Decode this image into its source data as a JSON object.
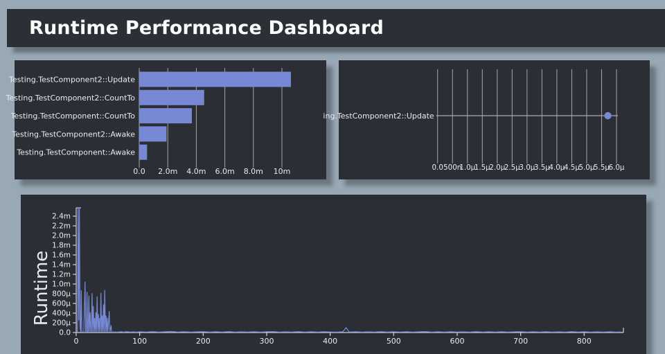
{
  "theme": {
    "page_background": "#98a8b4",
    "panel_background": "#2b2e34",
    "accent": "#7789d4",
    "grid_color": "#a7a7a7",
    "axis_color": "#cfd2d6",
    "text_color": "#e9ebee",
    "title_color": "#fbfbfb"
  },
  "header": {
    "title": "Runtime Performance Dashboard"
  },
  "chart_data": [
    {
      "id": "method-total-runtime",
      "type": "bar",
      "orientation": "horizontal",
      "categories": [
        "Testing.TestComponent2::Update",
        "Testing.TestComponent2::CountTo",
        "Testing.TestComponent::CountTo",
        "Testing.TestComponent2::Awake",
        "Testing.TestComponent::Awake"
      ],
      "values_ms": [
        10.63,
        4.55,
        3.69,
        1.91,
        0.55
      ],
      "xlim_ms": [
        0,
        12.5
      ],
      "grid": true,
      "xticks": [
        {
          "v": 0,
          "label": "0.0"
        },
        {
          "v": 2,
          "label": "2.0m"
        },
        {
          "v": 4,
          "label": "4.0m"
        },
        {
          "v": 6,
          "label": "6.0m"
        },
        {
          "v": 8,
          "label": "8.0m"
        },
        {
          "v": 10,
          "label": "10m"
        }
      ]
    },
    {
      "id": "update-runtime-range",
      "type": "scatter",
      "categories": [
        "ing.TestComponent2::Update"
      ],
      "mean_us": 5.71,
      "range_us": [
        0,
        6.05
      ],
      "xlim_us": [
        0,
        6.3
      ],
      "grid": true,
      "xticks": [
        {
          "v": 0.0,
          "label": "0.0"
        },
        {
          "v": 0.5,
          "label": "500n"
        },
        {
          "v": 1.0,
          "label": "1.0µ"
        },
        {
          "v": 1.5,
          "label": "1.5µ"
        },
        {
          "v": 2.0,
          "label": "2.0µ"
        },
        {
          "v": 2.5,
          "label": "2.5µ"
        },
        {
          "v": 3.0,
          "label": "3.0µ"
        },
        {
          "v": 3.5,
          "label": "3.5µ"
        },
        {
          "v": 4.0,
          "label": "4.0µ"
        },
        {
          "v": 4.5,
          "label": "4.5µ"
        },
        {
          "v": 5.0,
          "label": "5.0µ"
        },
        {
          "v": 5.5,
          "label": "5.5µ"
        },
        {
          "v": 6.0,
          "label": "6.0µ"
        }
      ]
    },
    {
      "id": "runtime-timeline",
      "type": "line",
      "ylabel": "Runtime",
      "xlim": [
        0,
        862
      ],
      "ylim_us": [
        0,
        2571
      ],
      "grid": false,
      "xticks": [
        {
          "v": 0,
          "label": "0"
        },
        {
          "v": 100,
          "label": "100"
        },
        {
          "v": 200,
          "label": "200"
        },
        {
          "v": 300,
          "label": "300"
        },
        {
          "v": 400,
          "label": "400"
        },
        {
          "v": 500,
          "label": "500"
        },
        {
          "v": 600,
          "label": "600"
        },
        {
          "v": 700,
          "label": "700"
        },
        {
          "v": 800,
          "label": "800"
        }
      ],
      "yticks": [
        {
          "v": 0,
          "label": "0.0"
        },
        {
          "v": 200,
          "label": "200µ"
        },
        {
          "v": 400,
          "label": "400µ"
        },
        {
          "v": 600,
          "label": "600µ"
        },
        {
          "v": 800,
          "label": "800µ"
        },
        {
          "v": 1000,
          "label": "1.0m"
        },
        {
          "v": 1200,
          "label": "1.2m"
        },
        {
          "v": 1400,
          "label": "1.4m"
        },
        {
          "v": 1600,
          "label": "1.6m"
        },
        {
          "v": 1800,
          "label": "1.8m"
        },
        {
          "v": 2000,
          "label": "2.0m"
        },
        {
          "v": 2200,
          "label": "2.2m"
        },
        {
          "v": 2400,
          "label": "2.4m"
        }
      ],
      "points_x_us": [
        [
          0,
          6
        ],
        [
          1,
          10
        ],
        [
          2,
          15
        ],
        [
          3,
          2700
        ],
        [
          4,
          250
        ],
        [
          5,
          2700
        ],
        [
          6,
          120
        ],
        [
          7,
          12
        ],
        [
          8,
          870
        ],
        [
          9,
          15
        ],
        [
          10,
          8
        ],
        [
          12,
          10
        ],
        [
          14,
          1050
        ],
        [
          15,
          12
        ],
        [
          16,
          30
        ],
        [
          17,
          840
        ],
        [
          18,
          15
        ],
        [
          19,
          20
        ],
        [
          20,
          760
        ],
        [
          21,
          15
        ],
        [
          22,
          420
        ],
        [
          23,
          12
        ],
        [
          24,
          18
        ],
        [
          25,
          810
        ],
        [
          26,
          14
        ],
        [
          27,
          545
        ],
        [
          28,
          10
        ],
        [
          29,
          300
        ],
        [
          30,
          15
        ],
        [
          31,
          420
        ],
        [
          32,
          12
        ],
        [
          33,
          745
        ],
        [
          34,
          14
        ],
        [
          35,
          380
        ],
        [
          36,
          12
        ],
        [
          37,
          300
        ],
        [
          38,
          14
        ],
        [
          39,
          820
        ],
        [
          40,
          12
        ],
        [
          41,
          350
        ],
        [
          42,
          15
        ],
        [
          43,
          580
        ],
        [
          44,
          12
        ],
        [
          45,
          880
        ],
        [
          46,
          14
        ],
        [
          47,
          350
        ],
        [
          48,
          12
        ],
        [
          49,
          300
        ],
        [
          50,
          14
        ],
        [
          52,
          440
        ],
        [
          53,
          12
        ],
        [
          55,
          150
        ],
        [
          56,
          10
        ],
        [
          58,
          8
        ],
        [
          60,
          12
        ],
        [
          65,
          9
        ],
        [
          70,
          15
        ],
        [
          75,
          8
        ],
        [
          80,
          18
        ],
        [
          85,
          10
        ],
        [
          90,
          14
        ],
        [
          95,
          8
        ],
        [
          100,
          16
        ],
        [
          110,
          10
        ],
        [
          120,
          18
        ],
        [
          130,
          9
        ],
        [
          140,
          15
        ],
        [
          150,
          22
        ],
        [
          160,
          10
        ],
        [
          170,
          16
        ],
        [
          180,
          8
        ],
        [
          190,
          14
        ],
        [
          200,
          18
        ],
        [
          210,
          9
        ],
        [
          220,
          15
        ],
        [
          230,
          10
        ],
        [
          240,
          20
        ],
        [
          250,
          8
        ],
        [
          260,
          14
        ],
        [
          270,
          10
        ],
        [
          280,
          16
        ],
        [
          290,
          9
        ],
        [
          300,
          15
        ],
        [
          310,
          20
        ],
        [
          320,
          8
        ],
        [
          330,
          14
        ],
        [
          340,
          10
        ],
        [
          350,
          18
        ],
        [
          360,
          9
        ],
        [
          370,
          15
        ],
        [
          380,
          8
        ],
        [
          390,
          16
        ],
        [
          400,
          12
        ],
        [
          410,
          9
        ],
        [
          420,
          15
        ],
        [
          425,
          100
        ],
        [
          430,
          12
        ],
        [
          440,
          16
        ],
        [
          450,
          8
        ],
        [
          460,
          14
        ],
        [
          470,
          10
        ],
        [
          480,
          18
        ],
        [
          490,
          9
        ],
        [
          500,
          15
        ],
        [
          510,
          10
        ],
        [
          520,
          16
        ],
        [
          530,
          8
        ],
        [
          540,
          14
        ],
        [
          550,
          20
        ],
        [
          560,
          9
        ],
        [
          570,
          15
        ],
        [
          580,
          8
        ],
        [
          590,
          16
        ],
        [
          600,
          10
        ],
        [
          610,
          14
        ],
        [
          620,
          9
        ],
        [
          630,
          18
        ],
        [
          640,
          8
        ],
        [
          650,
          15
        ],
        [
          660,
          10
        ],
        [
          670,
          16
        ],
        [
          680,
          9
        ],
        [
          690,
          14
        ],
        [
          700,
          18
        ],
        [
          710,
          8
        ],
        [
          720,
          15
        ],
        [
          730,
          10
        ],
        [
          740,
          16
        ],
        [
          750,
          9
        ],
        [
          760,
          14
        ],
        [
          770,
          8
        ],
        [
          780,
          18
        ],
        [
          790,
          10
        ],
        [
          800,
          15
        ],
        [
          810,
          9
        ],
        [
          820,
          14
        ],
        [
          830,
          10
        ],
        [
          840,
          16
        ],
        [
          850,
          8
        ],
        [
          855,
          12
        ],
        [
          860,
          10
        ]
      ]
    }
  ]
}
